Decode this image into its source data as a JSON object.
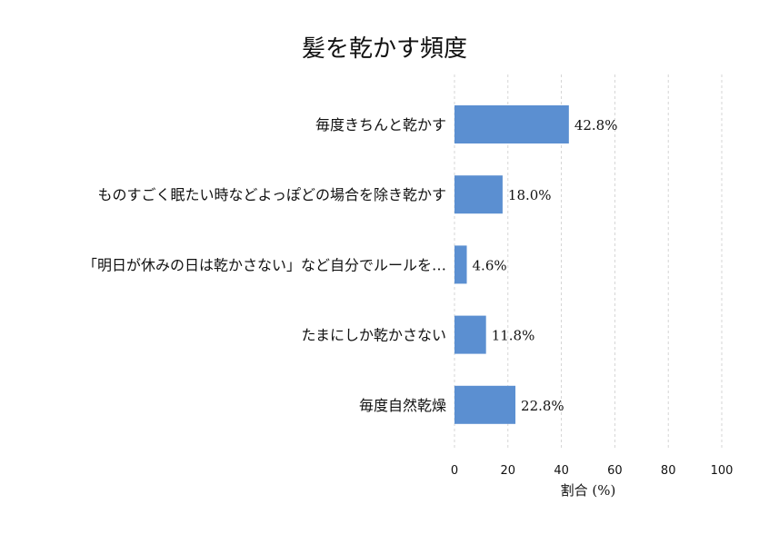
{
  "chart_data": {
    "type": "bar",
    "orientation": "horizontal",
    "title": "髪を乾かす頻度",
    "xlabel": "割合 (%)",
    "ylabel": "",
    "xlim": [
      0,
      100
    ],
    "xticks": [
      0,
      20,
      40,
      60,
      80,
      100
    ],
    "grid": true,
    "categories": [
      "毎度きちんと乾かす",
      "ものすごく眠たい時などよっぽどの場合を除き乾かす",
      "「明日が休みの日は乾かさない」など自分でルールを…",
      "たまにしか乾かさない",
      "毎度自然乾燥"
    ],
    "values": [
      42.8,
      18.0,
      4.6,
      11.8,
      22.8
    ],
    "value_labels": [
      "42.8%",
      "18.0%",
      "4.6%",
      "11.8%",
      "22.8%"
    ],
    "bar_color": "#5b8fd1"
  }
}
